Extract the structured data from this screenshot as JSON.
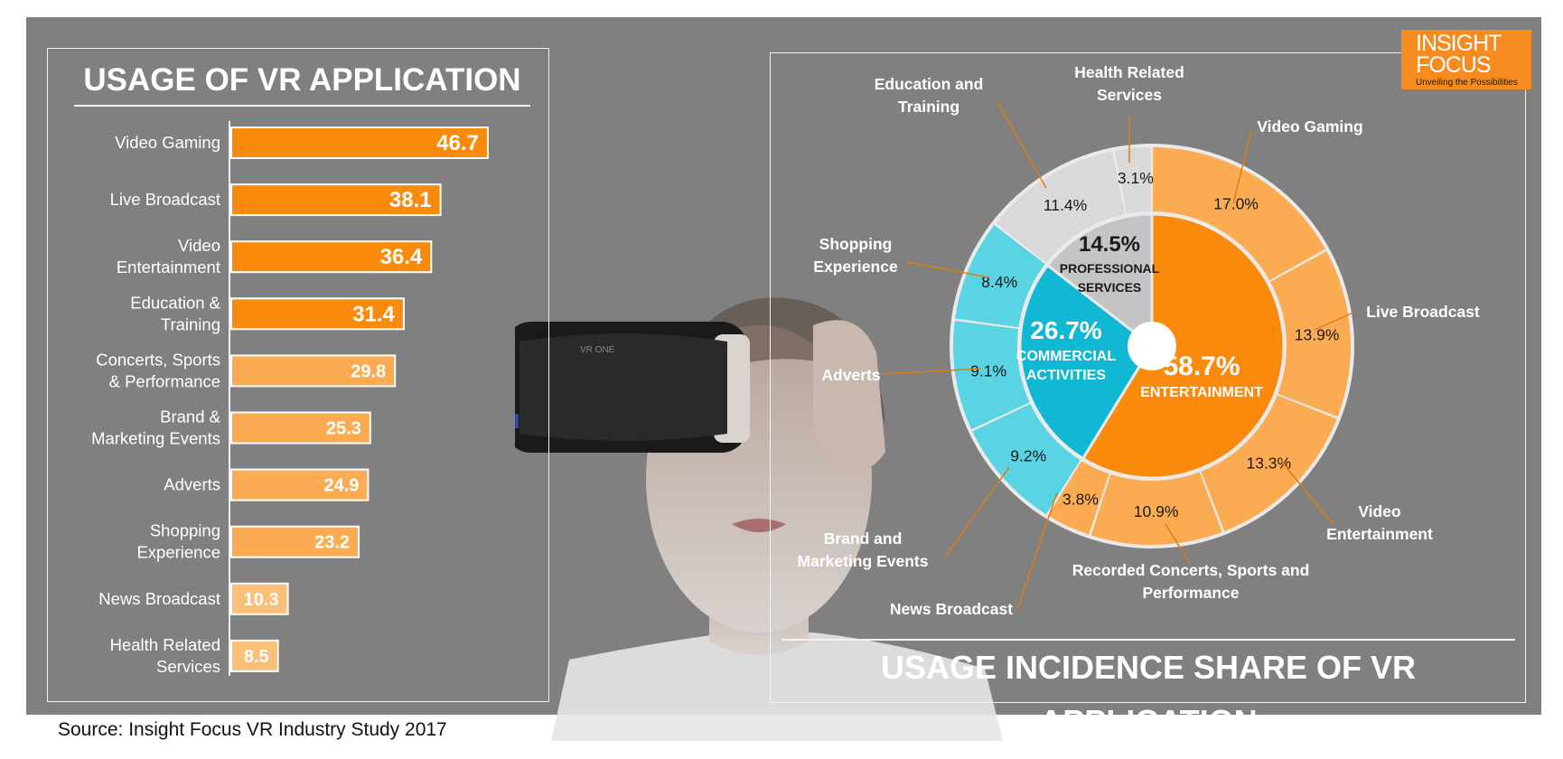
{
  "colors": {
    "background": "#808080",
    "orange_dark": "#f98a0b",
    "orange_light": "#fbab52",
    "orange_pale": "#fbbf78",
    "cyan_dark": "#10b8d4",
    "cyan_light": "#5ad3e3",
    "gray_inner": "#c4c4c4",
    "gray_outer": "#d9d9d9",
    "logo": "#f68b1f"
  },
  "logo": {
    "line1": "INSIGHT",
    "line2": "FOCUS",
    "tagline": "Unveiling the Possibilities"
  },
  "source": "Source: Insight Focus VR Industry Study 2017",
  "chart_data": [
    {
      "type": "bar",
      "orientation": "horizontal",
      "title": "USAGE OF VR APPLICATION",
      "categories": [
        [
          "Video Gaming"
        ],
        [
          "Live Broadcast"
        ],
        [
          "Video",
          "Entertainment"
        ],
        [
          "Education &",
          "Training"
        ],
        [
          "Concerts, Sports",
          "& Performance"
        ],
        [
          "Brand &",
          "Marketing Events"
        ],
        [
          "Adverts"
        ],
        [
          "Shopping",
          "Experience"
        ],
        [
          "News Broadcast"
        ],
        [
          "Health Related",
          "Services"
        ]
      ],
      "values": [
        46.7,
        38.1,
        36.4,
        31.4,
        29.8,
        25.3,
        24.9,
        23.2,
        10.3,
        8.5
      ],
      "value_labels": [
        "46.7",
        "38.1",
        "36.4",
        "31.4",
        "29.8",
        "25.3",
        "24.9",
        "23.2",
        "10.3",
        "8.5"
      ],
      "shades": [
        "dark",
        "dark",
        "dark",
        "dark",
        "light",
        "light",
        "light",
        "light",
        "pale",
        "pale"
      ],
      "xlim": [
        0,
        50
      ]
    },
    {
      "type": "pie",
      "variant": "sunburst",
      "title": "USAGE INCIDENCE SHARE OF VR APPLICATION",
      "inner": [
        {
          "name": [
            "ENTERTAINMENT"
          ],
          "value": 58.7,
          "label": "58.7%",
          "color": "orange"
        },
        {
          "name": [
            "COMMERCIAL",
            "ACTIVITIES"
          ],
          "value": 26.7,
          "label": "26.7%",
          "color": "cyan"
        },
        {
          "name": [
            "PROFESSIONAL",
            "SERVICES"
          ],
          "value": 14.5,
          "label": "14.5%",
          "color": "gray"
        }
      ],
      "outer": [
        {
          "name": [
            "Video Gaming"
          ],
          "value": 17.0,
          "label": "17.0%",
          "group": "orange"
        },
        {
          "name": [
            "Live Broadcast"
          ],
          "value": 13.9,
          "label": "13.9%",
          "group": "orange"
        },
        {
          "name": [
            "Video",
            "Entertainment"
          ],
          "value": 13.3,
          "label": "13.3%",
          "group": "orange"
        },
        {
          "name": [
            "Recorded Concerts, Sports and",
            "Performance"
          ],
          "value": 10.9,
          "label": "10.9%",
          "group": "orange"
        },
        {
          "name": [
            "News Broadcast"
          ],
          "value": 3.8,
          "label": "3.8%",
          "group": "orange"
        },
        {
          "name": [
            "Brand and",
            "Marketing Events"
          ],
          "value": 9.2,
          "label": "9.2%",
          "group": "cyan"
        },
        {
          "name": [
            "Adverts"
          ],
          "value": 9.1,
          "label": "9.1%",
          "group": "cyan"
        },
        {
          "name": [
            "Shopping",
            "Experience"
          ],
          "value": 8.4,
          "label": "8.4%",
          "group": "cyan"
        },
        {
          "name": [
            "Education and",
            "Training"
          ],
          "value": 11.4,
          "label": "11.4%",
          "group": "gray"
        },
        {
          "name": [
            "Health Related",
            "Services"
          ],
          "value": 3.1,
          "label": "3.1%",
          "group": "gray"
        }
      ]
    }
  ]
}
